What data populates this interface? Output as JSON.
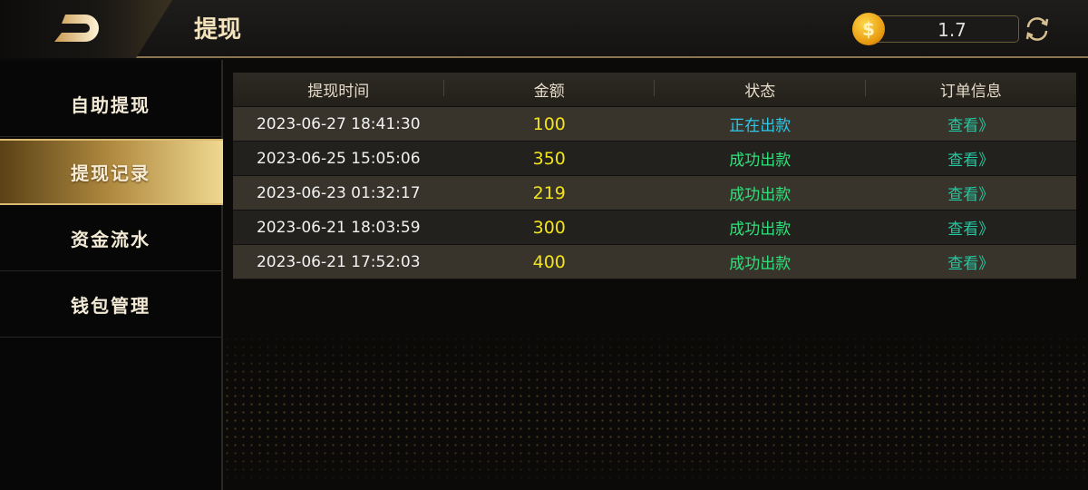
{
  "header": {
    "title": "提现",
    "balance": "1.7",
    "coin_icon": "$"
  },
  "sidebar": {
    "items": [
      {
        "label": "自助提现"
      },
      {
        "label": "提现记录",
        "active": true
      },
      {
        "label": "资金流水"
      },
      {
        "label": "钱包管理"
      }
    ]
  },
  "table": {
    "columns": [
      "提现时间",
      "金额",
      "状态",
      "订单信息"
    ],
    "rows": [
      {
        "time": "2023-06-27 18:41:30",
        "amount": "100",
        "status": "正在出款",
        "status_color": "#2ec8e8",
        "action": "查看》"
      },
      {
        "time": "2023-06-25 15:05:06",
        "amount": "350",
        "status": "成功出款",
        "status_color": "#2ee07a",
        "action": "查看》"
      },
      {
        "time": "2023-06-23 01:32:17",
        "amount": "219",
        "status": "成功出款",
        "status_color": "#2ee07a",
        "action": "查看》"
      },
      {
        "time": "2023-06-21 18:03:59",
        "amount": "300",
        "status": "成功出款",
        "status_color": "#2ee07a",
        "action": "查看》"
      },
      {
        "time": "2023-06-21 17:52:03",
        "amount": "400",
        "status": "成功出款",
        "status_color": "#2ee07a",
        "action": "查看》"
      }
    ]
  }
}
